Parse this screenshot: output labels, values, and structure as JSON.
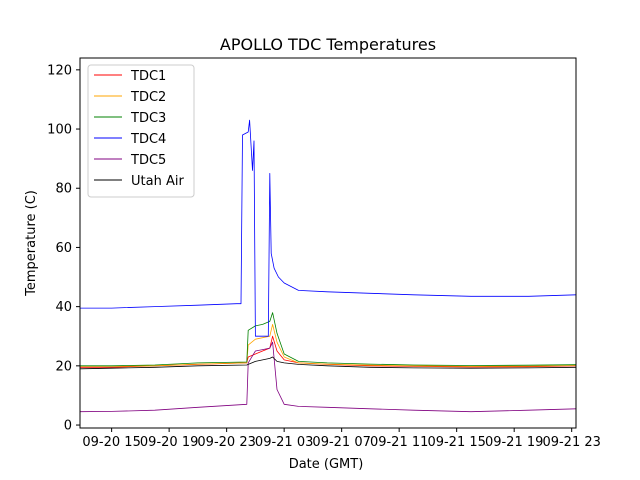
{
  "chart_data": {
    "type": "line",
    "title": "APOLLO TDC Temperatures",
    "xlabel": "Date (GMT)",
    "ylabel": "Temperature (C)",
    "xlim": [
      12.8,
      47.3
    ],
    "ylim": [
      -1,
      124
    ],
    "x_ticks": [
      {
        "value": 15,
        "label": "09-20 15"
      },
      {
        "value": 19,
        "label": "09-20 19"
      },
      {
        "value": 23,
        "label": "09-20 23"
      },
      {
        "value": 27,
        "label": "09-21 03"
      },
      {
        "value": 31,
        "label": "09-21 07"
      },
      {
        "value": 35,
        "label": "09-21 11"
      },
      {
        "value": 39,
        "label": "09-21 15"
      },
      {
        "value": 43,
        "label": "09-21 19"
      },
      {
        "value": 47,
        "label": "09-21 23"
      }
    ],
    "y_ticks": [
      {
        "value": 0,
        "label": "0"
      },
      {
        "value": 20,
        "label": "20"
      },
      {
        "value": 40,
        "label": "40"
      },
      {
        "value": 60,
        "label": "60"
      },
      {
        "value": 80,
        "label": "80"
      },
      {
        "value": 100,
        "label": "100"
      },
      {
        "value": 120,
        "label": "120"
      }
    ],
    "legend_position": "top-left",
    "series": [
      {
        "name": "TDC1",
        "color": "#ff0000",
        "x": [
          12.8,
          15,
          18,
          21,
          24.4,
          24.5,
          25,
          25.5,
          26.0,
          26.2,
          26.5,
          27,
          28,
          30,
          33,
          36,
          40,
          44,
          47.3
        ],
        "y": [
          19.5,
          19.5,
          20,
          20.5,
          21,
          23,
          24,
          25,
          26,
          30,
          25,
          22,
          21,
          20.5,
          20,
          19.8,
          19.6,
          19.7,
          20
        ]
      },
      {
        "name": "TDC2",
        "color": "#ffa500",
        "x": [
          12.8,
          15,
          18,
          21,
          24.4,
          24.5,
          25,
          25.5,
          26.0,
          26.2,
          26.5,
          27,
          28,
          30,
          33,
          36,
          40,
          44,
          47.3
        ],
        "y": [
          19.8,
          19.8,
          20,
          20.6,
          21,
          27,
          29,
          29.5,
          30,
          34,
          28,
          23,
          21,
          20.6,
          20.2,
          20,
          19.8,
          19.9,
          20.1
        ]
      },
      {
        "name": "TDC3",
        "color": "#008000",
        "x": [
          12.8,
          15,
          18,
          21,
          24.4,
          24.5,
          25,
          25.5,
          26.0,
          26.2,
          26.5,
          27,
          28,
          30,
          33,
          36,
          40,
          44,
          47.3
        ],
        "y": [
          20,
          20,
          20.3,
          21,
          21.3,
          32,
          33.5,
          34,
          35,
          38,
          31,
          24,
          21.5,
          21,
          20.6,
          20.3,
          20.1,
          20.2,
          20.4
        ]
      },
      {
        "name": "TDC4",
        "color": "#0000ff",
        "x": [
          12.8,
          15,
          18,
          21,
          23.7,
          24.0,
          24.1,
          24.5,
          24.6,
          24.8,
          24.9,
          25.0,
          25.9,
          26.0,
          26.1,
          26.3,
          26.6,
          27,
          28,
          30,
          33,
          36,
          40,
          44,
          47.3
        ],
        "y": [
          39.5,
          39.5,
          40,
          40.5,
          41,
          41,
          98,
          99,
          103,
          86,
          96,
          30,
          30,
          85,
          58,
          53,
          50,
          48,
          45.5,
          45,
          44.5,
          44,
          43.5,
          43.5,
          44
        ]
      },
      {
        "name": "TDC5",
        "color": "#800080",
        "x": [
          12.8,
          15,
          18,
          21,
          24.4,
          24.5,
          25,
          25.5,
          26.0,
          26.2,
          26.5,
          27,
          28,
          30,
          33,
          36,
          40,
          44,
          47.3
        ],
        "y": [
          4.5,
          4.6,
          5,
          6,
          7,
          21,
          25,
          25.5,
          26,
          28,
          12,
          7,
          6.3,
          6,
          5.5,
          5,
          4.5,
          5,
          5.5
        ]
      },
      {
        "name": "Utah Air",
        "color": "#000000",
        "x": [
          12.8,
          15,
          18,
          21,
          24.4,
          24.5,
          25,
          25.5,
          26.0,
          26.2,
          26.5,
          27,
          28,
          30,
          33,
          36,
          40,
          44,
          47.3
        ],
        "y": [
          19,
          19.2,
          19.5,
          20,
          20.3,
          20.5,
          21.5,
          22,
          22.5,
          23,
          21.5,
          21,
          20.5,
          20,
          19.5,
          19.3,
          19.2,
          19.3,
          19.5
        ]
      }
    ]
  }
}
